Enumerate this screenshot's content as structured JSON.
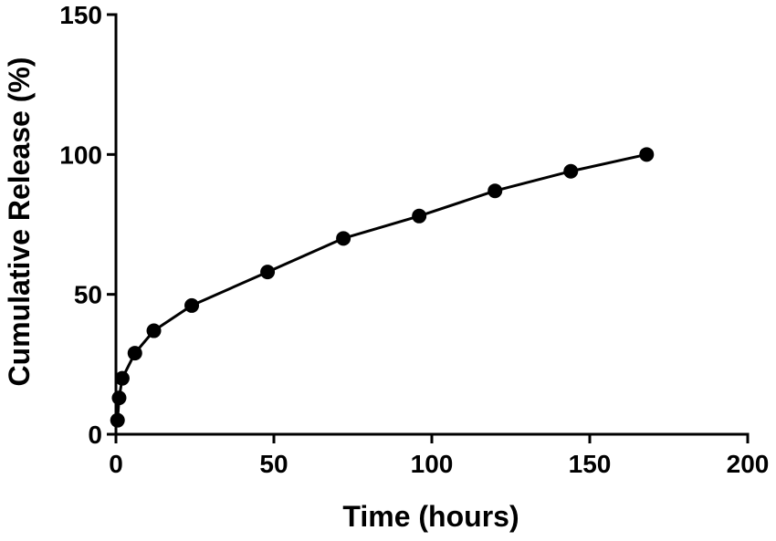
{
  "chart_data": {
    "type": "line",
    "title": "",
    "xlabel": "Time (hours)",
    "ylabel": "Cumulative Release (%)",
    "xlim": [
      0,
      200
    ],
    "ylim": [
      0,
      150
    ],
    "xticks": [
      0,
      50,
      100,
      150,
      200
    ],
    "yticks": [
      0,
      50,
      100,
      150
    ],
    "xtick_labels": [
      "0",
      "50",
      "100",
      "150",
      "200"
    ],
    "ytick_labels": [
      "0",
      "50",
      "100",
      "150"
    ],
    "grid": false,
    "legend": "none",
    "series": [
      {
        "x": [
          0.5,
          1,
          2,
          6,
          12,
          24,
          48,
          72,
          96,
          120,
          144,
          168
        ],
        "y": [
          5,
          13,
          20,
          29,
          37,
          46,
          58,
          70,
          78,
          87,
          94,
          100
        ],
        "color": "#000000",
        "marker": "circle"
      }
    ]
  }
}
